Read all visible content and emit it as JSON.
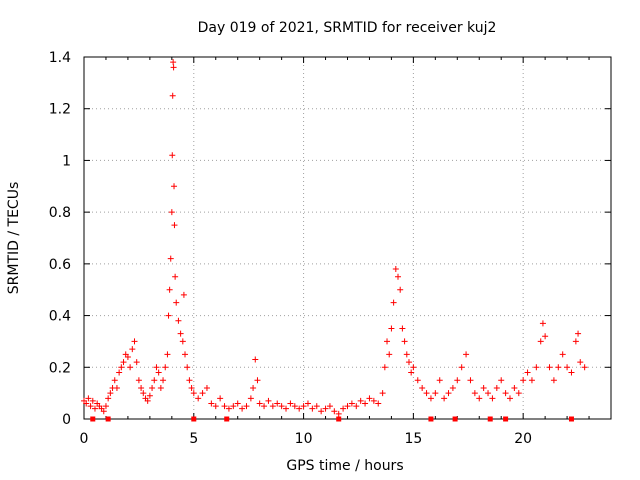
{
  "chart_data": {
    "type": "scatter",
    "title": "Day 019 of 2021, SRMTID for receiver kuj2",
    "xlabel": "GPS time / hours",
    "ylabel": "SRMTID / TECUs",
    "xlim": [
      0,
      24
    ],
    "ylim": [
      0,
      1.4
    ],
    "x_ticks": [
      0,
      5,
      10,
      15,
      20
    ],
    "x_tick_labels": [
      "0",
      "5",
      "10",
      "15",
      "20"
    ],
    "y_ticks": [
      0,
      0.2,
      0.4,
      0.6,
      0.8,
      1.0,
      1.2,
      1.4
    ],
    "y_tick_labels": [
      "0",
      "0.2",
      "0.4",
      "0.6",
      "0.8",
      "1",
      "1.2",
      "1.4"
    ],
    "grid": true,
    "marker": "+",
    "color": "#ff0000",
    "series": [
      {
        "name": "SRMTID",
        "points": [
          [
            0.0,
            0.07
          ],
          [
            0.1,
            0.06
          ],
          [
            0.2,
            0.08
          ],
          [
            0.3,
            0.05
          ],
          [
            0.4,
            0.07
          ],
          [
            0.5,
            0.04
          ],
          [
            0.6,
            0.06
          ],
          [
            0.7,
            0.05
          ],
          [
            0.8,
            0.04
          ],
          [
            0.9,
            0.03
          ],
          [
            1.0,
            0.05
          ],
          [
            1.1,
            0.08
          ],
          [
            1.2,
            0.1
          ],
          [
            1.3,
            0.12
          ],
          [
            1.4,
            0.15
          ],
          [
            1.5,
            0.12
          ],
          [
            1.6,
            0.18
          ],
          [
            1.7,
            0.2
          ],
          [
            1.8,
            0.22
          ],
          [
            1.9,
            0.25
          ],
          [
            2.0,
            0.24
          ],
          [
            2.1,
            0.2
          ],
          [
            2.2,
            0.27
          ],
          [
            2.3,
            0.3
          ],
          [
            2.4,
            0.22
          ],
          [
            2.5,
            0.15
          ],
          [
            2.6,
            0.12
          ],
          [
            2.7,
            0.1
          ],
          [
            2.8,
            0.08
          ],
          [
            2.9,
            0.07
          ],
          [
            3.0,
            0.09
          ],
          [
            3.1,
            0.12
          ],
          [
            3.2,
            0.15
          ],
          [
            3.3,
            0.2
          ],
          [
            3.4,
            0.18
          ],
          [
            3.5,
            0.12
          ],
          [
            3.6,
            0.15
          ],
          [
            3.7,
            0.2
          ],
          [
            3.8,
            0.25
          ],
          [
            3.85,
            0.4
          ],
          [
            3.9,
            0.5
          ],
          [
            3.95,
            0.62
          ],
          [
            4.0,
            0.8
          ],
          [
            4.02,
            1.02
          ],
          [
            4.04,
            1.25
          ],
          [
            4.06,
            1.38
          ],
          [
            4.08,
            1.36
          ],
          [
            4.1,
            0.9
          ],
          [
            4.12,
            0.75
          ],
          [
            4.15,
            0.55
          ],
          [
            4.2,
            0.45
          ],
          [
            4.3,
            0.38
          ],
          [
            4.4,
            0.33
          ],
          [
            4.5,
            0.3
          ],
          [
            4.55,
            0.48
          ],
          [
            4.6,
            0.25
          ],
          [
            4.7,
            0.2
          ],
          [
            4.8,
            0.15
          ],
          [
            4.9,
            0.12
          ],
          [
            5.0,
            0.1
          ],
          [
            5.2,
            0.08
          ],
          [
            5.4,
            0.1
          ],
          [
            5.6,
            0.12
          ],
          [
            5.8,
            0.06
          ],
          [
            6.0,
            0.05
          ],
          [
            6.2,
            0.08
          ],
          [
            6.4,
            0.05
          ],
          [
            6.6,
            0.04
          ],
          [
            6.8,
            0.05
          ],
          [
            7.0,
            0.06
          ],
          [
            7.2,
            0.04
          ],
          [
            7.4,
            0.05
          ],
          [
            7.6,
            0.08
          ],
          [
            7.7,
            0.12
          ],
          [
            7.8,
            0.23
          ],
          [
            7.9,
            0.15
          ],
          [
            8.0,
            0.06
          ],
          [
            8.2,
            0.05
          ],
          [
            8.4,
            0.07
          ],
          [
            8.6,
            0.05
          ],
          [
            8.8,
            0.06
          ],
          [
            9.0,
            0.05
          ],
          [
            9.2,
            0.04
          ],
          [
            9.4,
            0.06
          ],
          [
            9.6,
            0.05
          ],
          [
            9.8,
            0.04
          ],
          [
            10.0,
            0.05
          ],
          [
            10.2,
            0.06
          ],
          [
            10.4,
            0.04
          ],
          [
            10.6,
            0.05
          ],
          [
            10.8,
            0.03
          ],
          [
            11.0,
            0.04
          ],
          [
            11.2,
            0.05
          ],
          [
            11.4,
            0.03
          ],
          [
            11.6,
            0.02
          ],
          [
            11.8,
            0.04
          ],
          [
            12.0,
            0.05
          ],
          [
            12.2,
            0.06
          ],
          [
            12.4,
            0.05
          ],
          [
            12.6,
            0.07
          ],
          [
            12.8,
            0.06
          ],
          [
            13.0,
            0.08
          ],
          [
            13.2,
            0.07
          ],
          [
            13.4,
            0.06
          ],
          [
            13.6,
            0.1
          ],
          [
            13.7,
            0.2
          ],
          [
            13.8,
            0.3
          ],
          [
            13.9,
            0.25
          ],
          [
            14.0,
            0.35
          ],
          [
            14.1,
            0.45
          ],
          [
            14.2,
            0.58
          ],
          [
            14.3,
            0.55
          ],
          [
            14.4,
            0.5
          ],
          [
            14.5,
            0.35
          ],
          [
            14.6,
            0.3
          ],
          [
            14.7,
            0.25
          ],
          [
            14.8,
            0.22
          ],
          [
            14.9,
            0.18
          ],
          [
            15.0,
            0.2
          ],
          [
            15.2,
            0.15
          ],
          [
            15.4,
            0.12
          ],
          [
            15.6,
            0.1
          ],
          [
            15.8,
            0.08
          ],
          [
            16.0,
            0.1
          ],
          [
            16.2,
            0.15
          ],
          [
            16.4,
            0.08
          ],
          [
            16.6,
            0.1
          ],
          [
            16.8,
            0.12
          ],
          [
            17.0,
            0.15
          ],
          [
            17.2,
            0.2
          ],
          [
            17.4,
            0.25
          ],
          [
            17.6,
            0.15
          ],
          [
            17.8,
            0.1
          ],
          [
            18.0,
            0.08
          ],
          [
            18.2,
            0.12
          ],
          [
            18.4,
            0.1
          ],
          [
            18.6,
            0.08
          ],
          [
            18.8,
            0.12
          ],
          [
            19.0,
            0.15
          ],
          [
            19.2,
            0.1
          ],
          [
            19.4,
            0.08
          ],
          [
            19.6,
            0.12
          ],
          [
            19.8,
            0.1
          ],
          [
            20.0,
            0.15
          ],
          [
            20.2,
            0.18
          ],
          [
            20.4,
            0.15
          ],
          [
            20.6,
            0.2
          ],
          [
            20.8,
            0.3
          ],
          [
            20.9,
            0.37
          ],
          [
            21.0,
            0.32
          ],
          [
            21.2,
            0.2
          ],
          [
            21.4,
            0.15
          ],
          [
            21.6,
            0.2
          ],
          [
            21.8,
            0.25
          ],
          [
            22.0,
            0.2
          ],
          [
            22.2,
            0.18
          ],
          [
            22.4,
            0.3
          ],
          [
            22.5,
            0.33
          ],
          [
            22.6,
            0.22
          ],
          [
            22.8,
            0.2
          ]
        ]
      }
    ],
    "gap_markers_x": [
      0.4,
      1.1,
      5.0,
      6.5,
      11.6,
      15.8,
      16.9,
      18.5,
      19.2,
      22.2
    ]
  }
}
